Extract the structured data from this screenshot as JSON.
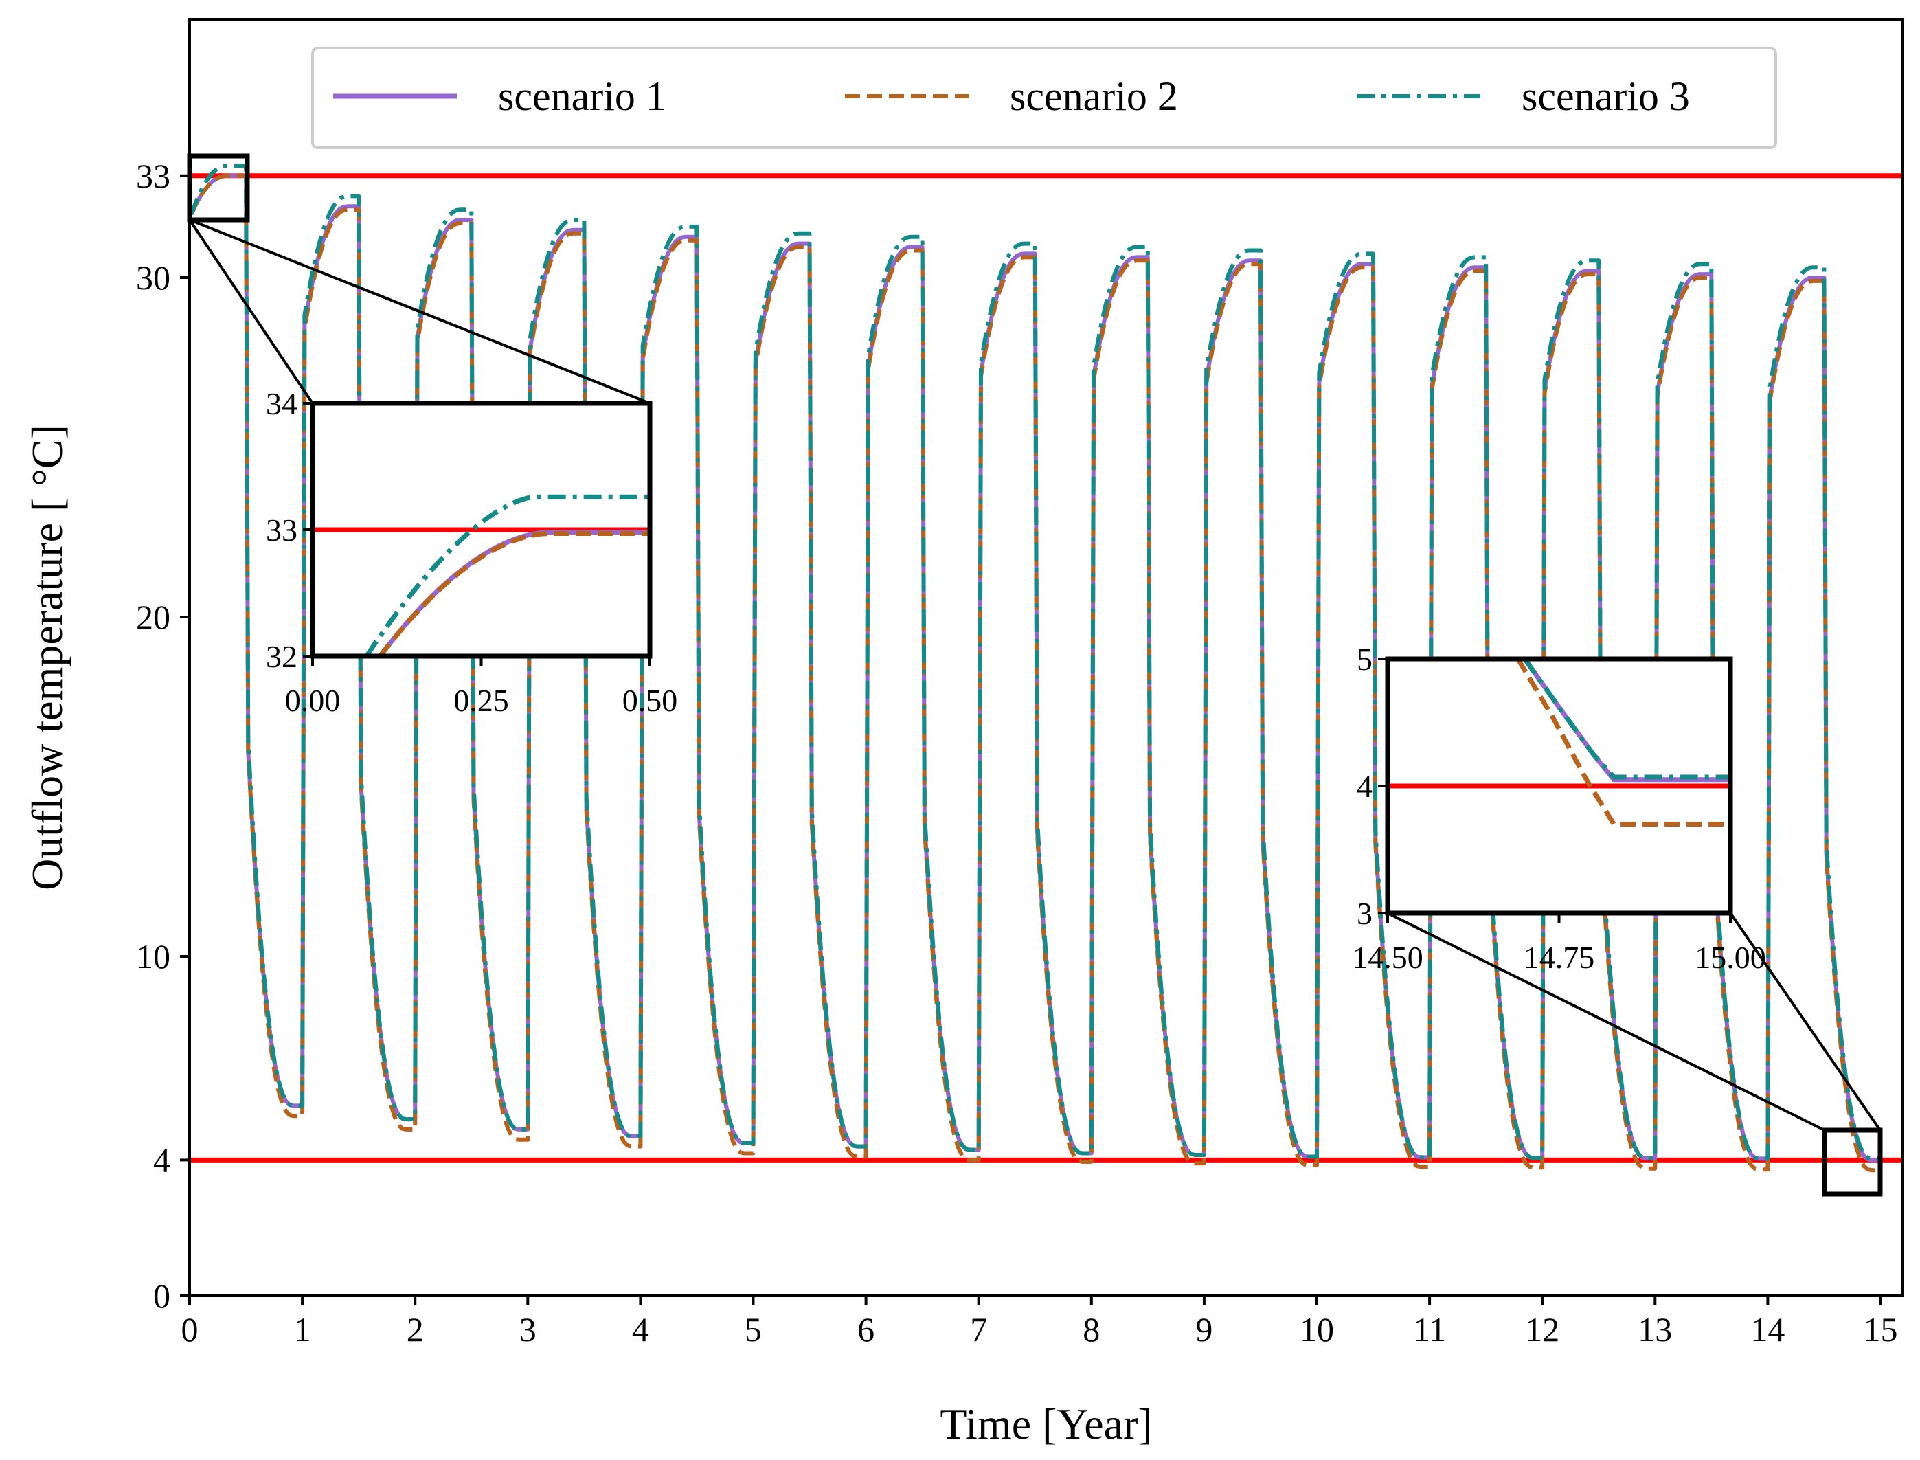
{
  "chart_data": {
    "type": "line",
    "title": "",
    "xlabel": "Time [Year]",
    "ylabel": "Outflow temperature [ °C]",
    "xlim": [
      0,
      15.2
    ],
    "ylim": [
      0,
      38
    ],
    "xticks": [
      0,
      1,
      2,
      3,
      4,
      5,
      6,
      7,
      8,
      9,
      10,
      11,
      12,
      13,
      14,
      15
    ],
    "yticks": [
      0,
      4,
      10,
      20,
      30,
      33
    ],
    "grid": false,
    "legend_position": "top",
    "thresholds": [
      {
        "value": 33,
        "color": "#ff0000"
      },
      {
        "value": 4,
        "color": "#ff0000"
      }
    ],
    "series": [
      {
        "name": "scenario 1",
        "style": "solid",
        "color": "#9467d0",
        "peaks": [
          33.0,
          32.1,
          31.7,
          31.4,
          31.2,
          31.0,
          30.9,
          30.7,
          30.6,
          30.5,
          30.4,
          30.3,
          30.2,
          30.1,
          30.0
        ],
        "troughs": [
          5.6,
          5.2,
          4.9,
          4.7,
          4.5,
          4.4,
          4.3,
          4.2,
          4.15,
          4.1,
          4.08,
          4.06,
          4.05,
          4.04,
          4.0
        ]
      },
      {
        "name": "scenario 2",
        "style": "dashed",
        "color": "#b8621b",
        "peaks": [
          33.0,
          32.0,
          31.6,
          31.3,
          31.1,
          30.9,
          30.8,
          30.6,
          30.5,
          30.4,
          30.3,
          30.2,
          30.1,
          30.0,
          29.9
        ],
        "troughs": [
          5.3,
          4.9,
          4.6,
          4.4,
          4.2,
          4.1,
          4.0,
          3.95,
          3.9,
          3.85,
          3.8,
          3.78,
          3.75,
          3.72,
          3.7
        ]
      },
      {
        "name": "scenario 3",
        "style": "dashdot",
        "color": "#128b8a",
        "peaks": [
          33.3,
          32.4,
          32.0,
          31.7,
          31.5,
          31.3,
          31.2,
          31.0,
          30.9,
          30.8,
          30.7,
          30.6,
          30.5,
          30.4,
          30.3
        ],
        "troughs": [
          5.6,
          5.2,
          4.9,
          4.7,
          4.5,
          4.4,
          4.3,
          4.2,
          4.15,
          4.1,
          4.08,
          4.06,
          4.05,
          4.04,
          4.05
        ]
      }
    ],
    "insets": [
      {
        "xlim": [
          0,
          0.5
        ],
        "ylim": [
          32,
          34
        ],
        "xticks": [
          "0.00",
          "0.25",
          "0.50"
        ],
        "yticks": [
          "32",
          "33",
          "34"
        ]
      },
      {
        "xlim": [
          14.5,
          15.0
        ],
        "ylim": [
          3,
          5
        ],
        "xticks": [
          "14.50",
          "14.75",
          "15.00"
        ],
        "yticks": [
          "3",
          "4",
          "5"
        ]
      }
    ]
  }
}
